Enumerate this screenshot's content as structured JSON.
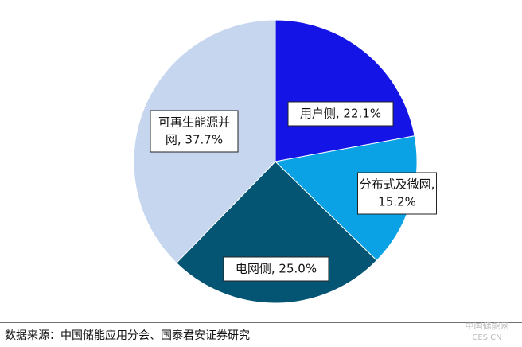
{
  "chart_data": {
    "type": "pie",
    "categories": [
      "用户侧",
      "分布式及微网",
      "电网侧",
      "可再生能源并网"
    ],
    "values": [
      22.1,
      15.2,
      25.0,
      37.7
    ],
    "labels": [
      [
        "用户侧, 22.1%"
      ],
      [
        "分布式及微网,",
        "15.2%"
      ],
      [
        "电网侧, 25.0%"
      ],
      [
        "可再生能源并",
        "网, 37.7%"
      ]
    ],
    "colors": [
      "#1414e6",
      "#0aa2e4",
      "#045473",
      "#c6d6ee"
    ],
    "source": "数据来源：中国储能应用分会、国泰君安证券研究",
    "watermark": [
      "中国储能网",
      "CES.CN"
    ]
  }
}
